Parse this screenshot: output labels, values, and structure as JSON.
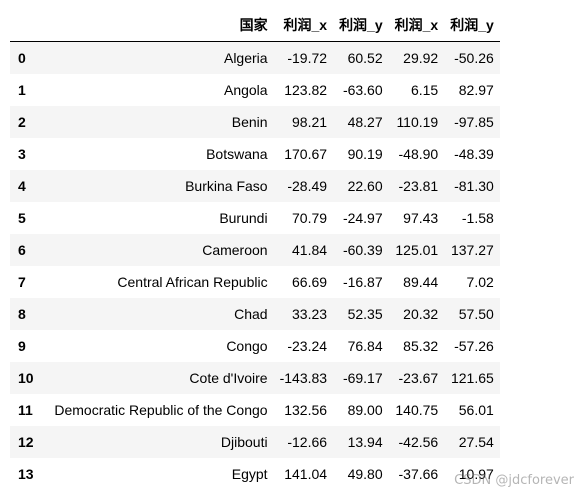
{
  "table": {
    "columns": [
      "",
      "国家",
      "利润_x",
      "利润_y",
      "利润_x",
      "利润_y"
    ],
    "rows": [
      {
        "index": "0",
        "country": "Algeria",
        "v1": "-19.72",
        "v2": "60.52",
        "v3": "29.92",
        "v4": "-50.26"
      },
      {
        "index": "1",
        "country": "Angola",
        "v1": "123.82",
        "v2": "-63.60",
        "v3": "6.15",
        "v4": "82.97"
      },
      {
        "index": "2",
        "country": "Benin",
        "v1": "98.21",
        "v2": "48.27",
        "v3": "110.19",
        "v4": "-97.85"
      },
      {
        "index": "3",
        "country": "Botswana",
        "v1": "170.67",
        "v2": "90.19",
        "v3": "-48.90",
        "v4": "-48.39"
      },
      {
        "index": "4",
        "country": "Burkina Faso",
        "v1": "-28.49",
        "v2": "22.60",
        "v3": "-23.81",
        "v4": "-81.30"
      },
      {
        "index": "5",
        "country": "Burundi",
        "v1": "70.79",
        "v2": "-24.97",
        "v3": "97.43",
        "v4": "-1.58"
      },
      {
        "index": "6",
        "country": "Cameroon",
        "v1": "41.84",
        "v2": "-60.39",
        "v3": "125.01",
        "v4": "137.27"
      },
      {
        "index": "7",
        "country": "Central African Republic",
        "v1": "66.69",
        "v2": "-16.87",
        "v3": "89.44",
        "v4": "7.02"
      },
      {
        "index": "8",
        "country": "Chad",
        "v1": "33.23",
        "v2": "52.35",
        "v3": "20.32",
        "v4": "57.50"
      },
      {
        "index": "9",
        "country": "Congo",
        "v1": "-23.24",
        "v2": "76.84",
        "v3": "85.32",
        "v4": "-57.26"
      },
      {
        "index": "10",
        "country": "Cote d'Ivoire",
        "v1": "-143.83",
        "v2": "-69.17",
        "v3": "-23.67",
        "v4": "121.65"
      },
      {
        "index": "11",
        "country": "Democratic Republic of the Congo",
        "v1": "132.56",
        "v2": "89.00",
        "v3": "140.75",
        "v4": "56.01"
      },
      {
        "index": "12",
        "country": "Djibouti",
        "v1": "-12.66",
        "v2": "13.94",
        "v3": "-42.56",
        "v4": "27.54"
      },
      {
        "index": "13",
        "country": "Egypt",
        "v1": "141.04",
        "v2": "49.80",
        "v3": "-37.66",
        "v4": "10.97"
      }
    ]
  },
  "watermark": "CSDN @jdcforever"
}
